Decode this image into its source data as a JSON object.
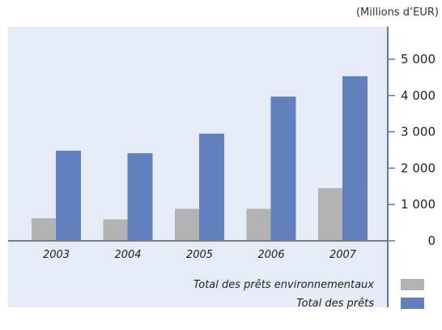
{
  "chart_data": {
    "type": "bar",
    "units_label": "(Millions d’EUR)",
    "categories": [
      "2003",
      "2004",
      "2005",
      "2006",
      "2007"
    ],
    "series": [
      {
        "name": "Total des prêts environnementaux",
        "values": [
          620,
          590,
          880,
          880,
          1450
        ],
        "color": "#b3b3b3"
      },
      {
        "name": "Total des prêts",
        "values": [
          2480,
          2410,
          2950,
          3970,
          4530
        ],
        "color": "#6180bd"
      }
    ],
    "ylim": [
      0,
      5000
    ],
    "yticks": [
      0,
      1000,
      2000,
      3000,
      4000,
      5000
    ],
    "ytick_labels": [
      "0",
      "1 000",
      "2 000",
      "3 000",
      "4 000",
      "5 000"
    ],
    "y_axis_side": "right",
    "grid": false,
    "legend_position": "bottom-right",
    "background_color": "#e6ecf7",
    "axis_color": "#5a79b5"
  }
}
